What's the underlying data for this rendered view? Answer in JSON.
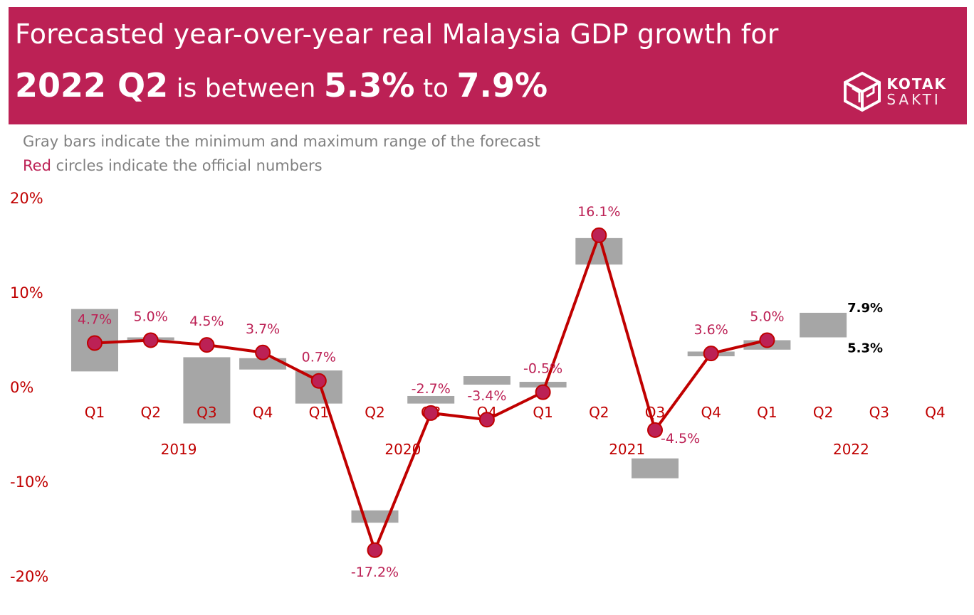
{
  "header": {
    "title_line1": "Forecasted year-over-year real Malaysia GDP growth for",
    "title_period": "2022 Q2",
    "title_mid": " is between ",
    "title_low": "5.3%",
    "title_to": " to ",
    "title_high": "7.9%"
  },
  "logo": {
    "word1": "KOTAK",
    "word2": "SAKTI"
  },
  "notes": {
    "line1": "Gray bars indicate the minimum and maximum range of the forecast",
    "line2_red": "Red",
    "line2_rest": " circles indicate the official numbers"
  },
  "colors": {
    "banner": "#bc2155",
    "axis": "#c00000",
    "line": "#c00000",
    "marker": "#bc2155",
    "bar": "#a6a6a6",
    "label": "#bc2155"
  },
  "chart_data": {
    "type": "line",
    "title": "Forecasted year-over-year real Malaysia GDP growth",
    "ylim": [
      -20,
      20
    ],
    "yticks": [
      20,
      10,
      0,
      -10,
      -20
    ],
    "ytick_labels": [
      "20%",
      "10%",
      "0%",
      "-10%",
      "-20%"
    ],
    "quarters": [
      "Q1",
      "Q2",
      "Q3",
      "Q4",
      "Q1",
      "Q2",
      "Q3",
      "Q4",
      "Q1",
      "Q2",
      "Q3",
      "Q4",
      "Q1",
      "Q2",
      "Q3",
      "Q4"
    ],
    "years": [
      "2019",
      "2020",
      "2021",
      "2022"
    ],
    "official": {
      "name": "Official numbers",
      "values": [
        4.7,
        5.0,
        4.5,
        3.7,
        0.7,
        -17.2,
        -2.7,
        -3.4,
        -0.5,
        16.1,
        -4.5,
        3.6,
        5.0,
        null,
        null,
        null
      ],
      "labels": [
        "4.7%",
        "5.0%",
        "4.5%",
        "3.7%",
        "0.7%",
        "-17.2%",
        "-2.7%",
        "-3.4%",
        "-0.5%",
        "16.1%",
        "-4.5%",
        "3.6%",
        "5.0%",
        "",
        "",
        ""
      ]
    },
    "forecast_range": {
      "name": "Forecast min-max range",
      "ranges": [
        [
          1.7,
          8.3
        ],
        [
          5.0,
          5.3
        ],
        [
          -3.8,
          3.2
        ],
        [
          1.9,
          3.1
        ],
        [
          -1.7,
          1.8
        ],
        [
          -14.3,
          -13.0
        ],
        [
          -1.7,
          -0.9
        ],
        [
          0.3,
          1.2
        ],
        [
          0,
          0.6
        ],
        [
          13.0,
          15.8
        ],
        [
          -9.6,
          -7.5
        ],
        [
          3.3,
          3.8
        ],
        [
          4.0,
          5.0
        ],
        [
          5.3,
          7.9
        ],
        null,
        null
      ]
    },
    "range_labels": {
      "high": "7.9%",
      "low": "5.3%"
    }
  }
}
